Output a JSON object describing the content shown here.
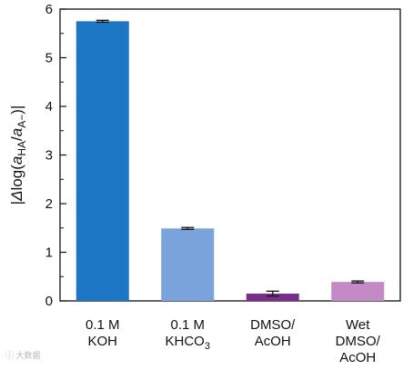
{
  "chart_data": {
    "type": "bar",
    "categories": [
      [
        "0.1 M",
        "KOH"
      ],
      [
        "0.1 M",
        "KHCO3"
      ],
      [
        "DMSO/",
        "AcOH"
      ],
      [
        "Wet",
        "DMSO/",
        "AcOH"
      ]
    ],
    "values": [
      5.75,
      1.49,
      0.15,
      0.39
    ],
    "errors": [
      0.02,
      0.02,
      0.05,
      0.02
    ],
    "colors": [
      "#1c76c3",
      "#7aa2db",
      "#7b2d8c",
      "#c48ac6"
    ],
    "ylabel": "|Δlog(aHA/aA−)|",
    "ylim": [
      0,
      6
    ],
    "yticks": [
      0,
      1,
      2,
      3,
      4,
      5,
      6
    ],
    "grid": false,
    "legend": "none"
  },
  "watermark": "ⓘ 大数据"
}
